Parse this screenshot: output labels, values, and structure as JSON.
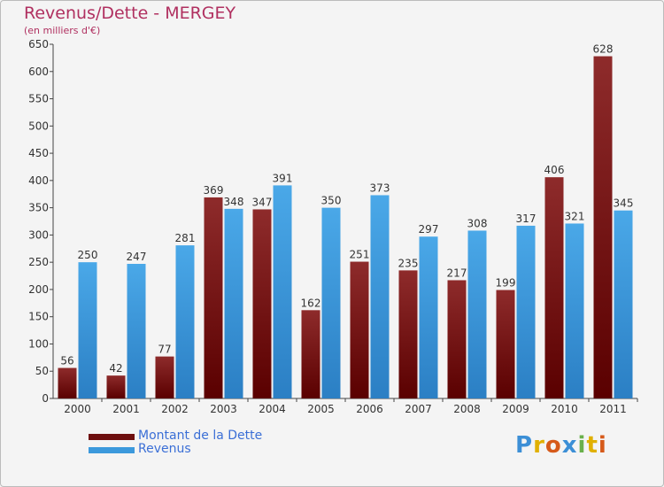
{
  "title": "Revenus/Dette - MERGEY",
  "subtitle": "(en milliers d'€)",
  "colors": {
    "dette": "#8b1a1a",
    "revenus": "#3c99dc",
    "title": "#b03060",
    "legend_text": "#3b6fd6"
  },
  "legend": {
    "dette": "Montant de la Dette",
    "revenus": "Revenus"
  },
  "logo": {
    "p": "P",
    "r": "r",
    "o": "o",
    "x": "x",
    "i1": "i",
    "t": "t",
    "i2": "i"
  },
  "chart_data": {
    "type": "bar",
    "title": "Revenus/Dette - MERGEY",
    "ylabel": "(en milliers d'€)",
    "xlabel": "",
    "categories": [
      "2000",
      "2001",
      "2002",
      "2003",
      "2004",
      "2005",
      "2006",
      "2007",
      "2008",
      "2009",
      "2010",
      "2011"
    ],
    "series": [
      {
        "name": "Montant de la Dette",
        "values": [
          56,
          42,
          77,
          369,
          347,
          162,
          251,
          235,
          217,
          199,
          406,
          628
        ]
      },
      {
        "name": "Revenus",
        "values": [
          250,
          247,
          281,
          348,
          391,
          350,
          373,
          297,
          308,
          317,
          321,
          345
        ]
      }
    ],
    "ylim": [
      0,
      650
    ],
    "yticks": [
      0,
      50,
      100,
      150,
      200,
      250,
      300,
      350,
      400,
      450,
      500,
      550,
      600,
      650
    ],
    "grid": false,
    "legend_position": "bottom-left"
  }
}
